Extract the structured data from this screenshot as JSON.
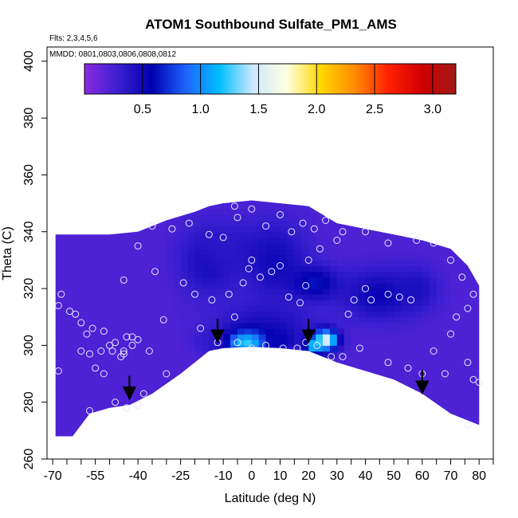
{
  "chart_data": {
    "type": "heatmap",
    "title": "ATOM1 Southbound Sulfate_PM1_AMS",
    "flights_note": "Flts: 2,3,4,5,6",
    "dates_note": "MMDD: 0801,0803,0806,0808,0812",
    "xlabel": "Latitude (deg N)",
    "ylabel": "Theta (C)",
    "xlim": [
      -70,
      85
    ],
    "ylim": [
      260,
      405
    ],
    "x_ticks": [
      "-70",
      "-55",
      "-40",
      "-25",
      "-10",
      "0",
      "10",
      "20",
      "30",
      "40",
      "50",
      "60",
      "70",
      "80"
    ],
    "x_tick_values": [
      -70,
      -55,
      -40,
      -25,
      -10,
      0,
      10,
      20,
      30,
      40,
      50,
      60,
      70,
      80
    ],
    "y_ticks": [
      "260",
      "280",
      "300",
      "320",
      "340",
      "360",
      "380",
      "400"
    ],
    "y_tick_values": [
      260,
      280,
      300,
      320,
      340,
      360,
      380,
      400
    ],
    "colorbar": {
      "range": [
        0,
        3.2
      ],
      "ticks": [
        "0.5",
        "1.0",
        "1.5",
        "2.0",
        "2.5",
        "3.0"
      ],
      "tick_values": [
        0.5,
        1.0,
        1.5,
        2.0,
        2.5,
        3.0
      ],
      "colors": [
        "#8a2be2",
        "#3a1fd0",
        "#0000b0",
        "#1e64ff",
        "#00bfff",
        "#cfe8ff",
        "#ffffe0",
        "#ffd700",
        "#ff8c00",
        "#ff2000",
        "#d00000",
        "#a01818"
      ]
    },
    "domain_top": [
      [
        -69,
        339
      ],
      [
        -60,
        339
      ],
      [
        -50,
        339
      ],
      [
        -40,
        340
      ],
      [
        -30,
        344
      ],
      [
        -20,
        347
      ],
      [
        -15,
        349
      ],
      [
        -10,
        350
      ],
      [
        0,
        351
      ],
      [
        10,
        350
      ],
      [
        20,
        349
      ],
      [
        30,
        343
      ],
      [
        40,
        341
      ],
      [
        50,
        339
      ],
      [
        60,
        337
      ],
      [
        70,
        334
      ],
      [
        76,
        328
      ],
      [
        80,
        321
      ],
      [
        80,
        302
      ]
    ],
    "domain_bottom": [
      [
        -69,
        268
      ],
      [
        -63,
        268
      ],
      [
        -57,
        276
      ],
      [
        -50,
        278
      ],
      [
        -43,
        279
      ],
      [
        -35,
        283
      ],
      [
        -25,
        290
      ],
      [
        -15,
        298
      ],
      [
        -10,
        299
      ],
      [
        0,
        299.5
      ],
      [
        10,
        299
      ],
      [
        20,
        298
      ],
      [
        25,
        296
      ],
      [
        30,
        294
      ],
      [
        40,
        291
      ],
      [
        50,
        288
      ],
      [
        60,
        283
      ],
      [
        70,
        276
      ],
      [
        80,
        272
      ]
    ],
    "background_value": 0.22,
    "blobs": [
      {
        "x": -15,
        "y": 330,
        "sx": 7,
        "sy": 8,
        "value": 0.5
      },
      {
        "x": -8,
        "y": 335,
        "sx": 8,
        "sy": 6,
        "value": 0.35
      },
      {
        "x": 8,
        "y": 330,
        "sx": 8,
        "sy": 9,
        "value": 0.5
      },
      {
        "x": 22,
        "y": 322,
        "sx": 6,
        "sy": 4,
        "value": 0.65
      },
      {
        "x": 45,
        "y": 318,
        "sx": 9,
        "sy": 6,
        "value": 0.55
      },
      {
        "x": 58,
        "y": 320,
        "sx": 5,
        "sy": 5,
        "value": 0.45
      },
      {
        "x": 5,
        "y": 307,
        "sx": 12,
        "sy": 6,
        "value": 0.45
      },
      {
        "x": -2,
        "y": 301,
        "sx": 6,
        "sy": 3,
        "value": 1.25
      },
      {
        "x": -14,
        "y": 302,
        "sx": 4,
        "sy": 3,
        "value": 0.35
      },
      {
        "x": 10,
        "y": 302,
        "sx": 4,
        "sy": 3,
        "value": 0.55
      },
      {
        "x": 26,
        "y": 302,
        "sx": 3,
        "sy": 2.5,
        "value": 1.6
      },
      {
        "x": 22,
        "y": 300,
        "sx": 2,
        "sy": 1.8,
        "value": 1.25
      }
    ],
    "points": [
      [
        -68,
        314
      ],
      [
        -67,
        318
      ],
      [
        -64,
        312
      ],
      [
        -62,
        311
      ],
      [
        -60,
        308
      ],
      [
        -58,
        304
      ],
      [
        -56,
        306
      ],
      [
        -52,
        305
      ],
      [
        -50,
        300
      ],
      [
        -48,
        301
      ],
      [
        -45,
        298
      ],
      [
        -44,
        303
      ],
      [
        -42,
        300
      ],
      [
        -46,
        296
      ],
      [
        -53,
        298
      ],
      [
        -57,
        297
      ],
      [
        -60,
        298
      ],
      [
        -40,
        302
      ],
      [
        -36,
        298
      ],
      [
        -31,
        309
      ],
      [
        -55,
        292
      ],
      [
        -52,
        290
      ],
      [
        -48,
        280
      ],
      [
        -40,
        279
      ],
      [
        -44,
        278
      ],
      [
        -57,
        277
      ],
      [
        -68,
        291
      ],
      [
        -38,
        283
      ],
      [
        -30,
        290
      ],
      [
        -42,
        303
      ],
      [
        -45,
        297
      ],
      [
        -49,
        298
      ],
      [
        -45,
        323
      ],
      [
        -40,
        335
      ],
      [
        -35,
        342
      ],
      [
        -28,
        341
      ],
      [
        -22,
        343
      ],
      [
        -15,
        339
      ],
      [
        -5,
        345
      ],
      [
        -10,
        338
      ],
      [
        0,
        348
      ],
      [
        5,
        342
      ],
      [
        10,
        346
      ],
      [
        14,
        340
      ],
      [
        18,
        343
      ],
      [
        22,
        341
      ],
      [
        26,
        344
      ],
      [
        30,
        337
      ],
      [
        32,
        340
      ],
      [
        24,
        334
      ],
      [
        20,
        330
      ],
      [
        10,
        328
      ],
      [
        7,
        326
      ],
      [
        3,
        324
      ],
      [
        -1,
        327
      ],
      [
        0,
        330
      ],
      [
        -3,
        322
      ],
      [
        -8,
        318
      ],
      [
        -14,
        316
      ],
      [
        -20,
        318
      ],
      [
        -24,
        322
      ],
      [
        -18,
        306
      ],
      [
        -6,
        310
      ],
      [
        -12,
        301
      ],
      [
        -5,
        301
      ],
      [
        0,
        299
      ],
      [
        5,
        300
      ],
      [
        11,
        299
      ],
      [
        16,
        299
      ],
      [
        19,
        301
      ],
      [
        23,
        300
      ],
      [
        28,
        296
      ],
      [
        32,
        296
      ],
      [
        34,
        311
      ],
      [
        36,
        316
      ],
      [
        40,
        320
      ],
      [
        42,
        316
      ],
      [
        48,
        318
      ],
      [
        52,
        317
      ],
      [
        56,
        316
      ],
      [
        48,
        294
      ],
      [
        55,
        292
      ],
      [
        60,
        290
      ],
      [
        68,
        290
      ],
      [
        64,
        298
      ],
      [
        70,
        304
      ],
      [
        72,
        310
      ],
      [
        76,
        313
      ],
      [
        78,
        318
      ],
      [
        74,
        324
      ],
      [
        70,
        330
      ],
      [
        64,
        336
      ],
      [
        58,
        337
      ],
      [
        40,
        340
      ],
      [
        48,
        336
      ],
      [
        76,
        294
      ],
      [
        78,
        288
      ],
      [
        80,
        287
      ],
      [
        76,
        272
      ],
      [
        17,
        315
      ],
      [
        19,
        321
      ],
      [
        13,
        317
      ],
      [
        38,
        299
      ],
      [
        -6,
        349
      ],
      [
        -34,
        326
      ]
    ],
    "arrows": [
      [
        -43,
        282
      ],
      [
        -12,
        302
      ],
      [
        20,
        302
      ],
      [
        60,
        284
      ]
    ]
  }
}
